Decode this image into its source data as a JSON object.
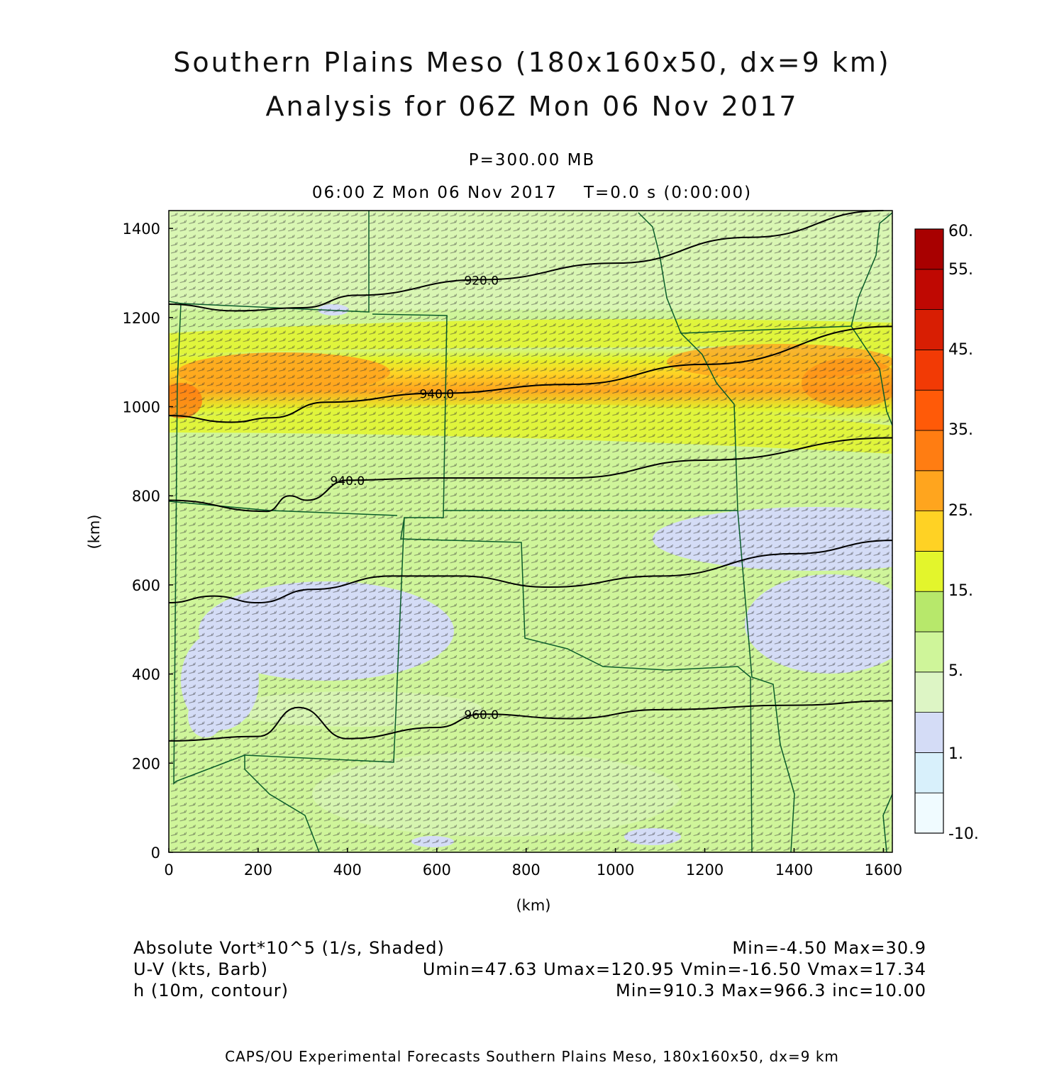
{
  "header": {
    "title_line1": "Southern Plains Meso (180x160x50, dx=9 km)",
    "title_line2": "Analysis for 06Z Mon 06 Nov 2017",
    "level": "P=300.00 MB",
    "time": "06:00 Z Mon 06 Nov 2017    T=0.0 s (0:00:00)"
  },
  "chart_data": {
    "type": "heatmap",
    "xlabel": "(km)",
    "ylabel": "(km)",
    "xlim": [
      0,
      1620
    ],
    "ylim": [
      0,
      1440
    ],
    "x_ticks": [
      0,
      200,
      400,
      600,
      800,
      1000,
      1200,
      1400,
      1600
    ],
    "y_ticks": [
      0,
      200,
      400,
      600,
      800,
      1000,
      1200,
      1400
    ],
    "colorbar": {
      "label_values": [
        "60.",
        "55.",
        "45.",
        "35.",
        "25.",
        "15.",
        "5.",
        "1.",
        "-10."
      ],
      "colors": [
        "#f0fbff",
        "#d8f0fb",
        "#d4dcf6",
        "#ddf5c5",
        "#cff59a",
        "#b7e86b",
        "#e3f52c",
        "#ffd224",
        "#ffa51e",
        "#ff7d12",
        "#ff5a08",
        "#f23a05",
        "#d81e03",
        "#bf0802",
        "#a80000"
      ]
    },
    "contours": [
      {
        "label": "920.0",
        "points": [
          [
            0,
            1230
          ],
          [
            150,
            1215
          ],
          [
            300,
            1222
          ],
          [
            420,
            1250
          ],
          [
            700,
            1285
          ],
          [
            1000,
            1322
          ],
          [
            1300,
            1380
          ],
          [
            1600,
            1440
          ]
        ]
      },
      {
        "label": "940.0",
        "points": [
          [
            0,
            980
          ],
          [
            140,
            965
          ],
          [
            230,
            975
          ],
          [
            350,
            1010
          ],
          [
            600,
            1030
          ],
          [
            900,
            1050
          ],
          [
            1200,
            1095
          ],
          [
            1620,
            1180
          ]
        ]
      },
      {
        "label": "940.0",
        "points": [
          [
            0,
            790
          ],
          [
            220,
            765
          ],
          [
            270,
            800
          ],
          [
            310,
            790
          ],
          [
            400,
            835
          ],
          [
            600,
            840
          ],
          [
            900,
            840
          ],
          [
            1200,
            880
          ],
          [
            1620,
            930
          ]
        ]
      },
      {
        "label": "",
        "points": [
          [
            0,
            560
          ],
          [
            100,
            575
          ],
          [
            200,
            560
          ],
          [
            320,
            590
          ],
          [
            500,
            620
          ],
          [
            650,
            620
          ],
          [
            850,
            595
          ],
          [
            1100,
            620
          ],
          [
            1400,
            670
          ],
          [
            1620,
            700
          ]
        ]
      },
      {
        "label": "960.0",
        "points": [
          [
            0,
            250
          ],
          [
            200,
            260
          ],
          [
            290,
            325
          ],
          [
            400,
            255
          ],
          [
            600,
            280
          ],
          [
            700,
            310
          ],
          [
            900,
            300
          ],
          [
            1100,
            320
          ],
          [
            1400,
            330
          ],
          [
            1620,
            340
          ]
        ]
      }
    ],
    "series": [
      {
        "values": [
          {
            "band": "vort_max",
            "x": [
              0,
              1620
            ],
            "y": [
              960,
              1110
            ],
            "peak": 30.9
          }
        ]
      }
    ]
  },
  "legend": {
    "field1": "Absolute Vort*10^5 (1/s, Shaded)",
    "field1_stats": "Min=-4.50 Max=30.9",
    "field2": "U-V (kts, Barb)",
    "field2_stats": "Umin=47.63 Umax=120.95 Vmin=-16.50 Vmax=17.34",
    "field3": "h (10m, contour)",
    "field3_stats": "Min=910.3 Max=966.3 inc=10.00"
  },
  "footer": "CAPS/OU Experimental Forecasts  Southern Plains Meso, 180x160x50, dx=9 km"
}
